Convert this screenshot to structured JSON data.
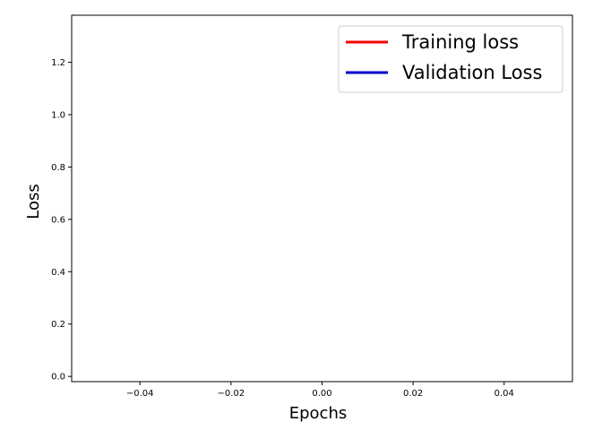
{
  "chart_data": {
    "type": "line",
    "xlabel": "Epochs",
    "ylabel": "Loss",
    "xlim": [
      -0.055,
      0.055
    ],
    "ylim": [
      -0.02,
      1.38
    ],
    "xticks": [
      -0.04,
      -0.02,
      0.0,
      0.02,
      0.04
    ],
    "xtick_labels": [
      "−0.04",
      "−0.02",
      "0.00",
      "0.02",
      "0.04"
    ],
    "yticks": [
      0.0,
      0.2,
      0.4,
      0.6,
      0.8,
      1.0,
      1.2
    ],
    "ytick_labels": [
      "0.0",
      "0.2",
      "0.4",
      "0.6",
      "0.8",
      "1.0",
      "1.2"
    ],
    "grid": false,
    "legend_position": "top-right",
    "series": [
      {
        "name": "Training loss",
        "color": "#ff0000",
        "x": [],
        "y": []
      },
      {
        "name": "Validation Loss",
        "color": "#0000cc",
        "x": [],
        "y": []
      }
    ]
  }
}
